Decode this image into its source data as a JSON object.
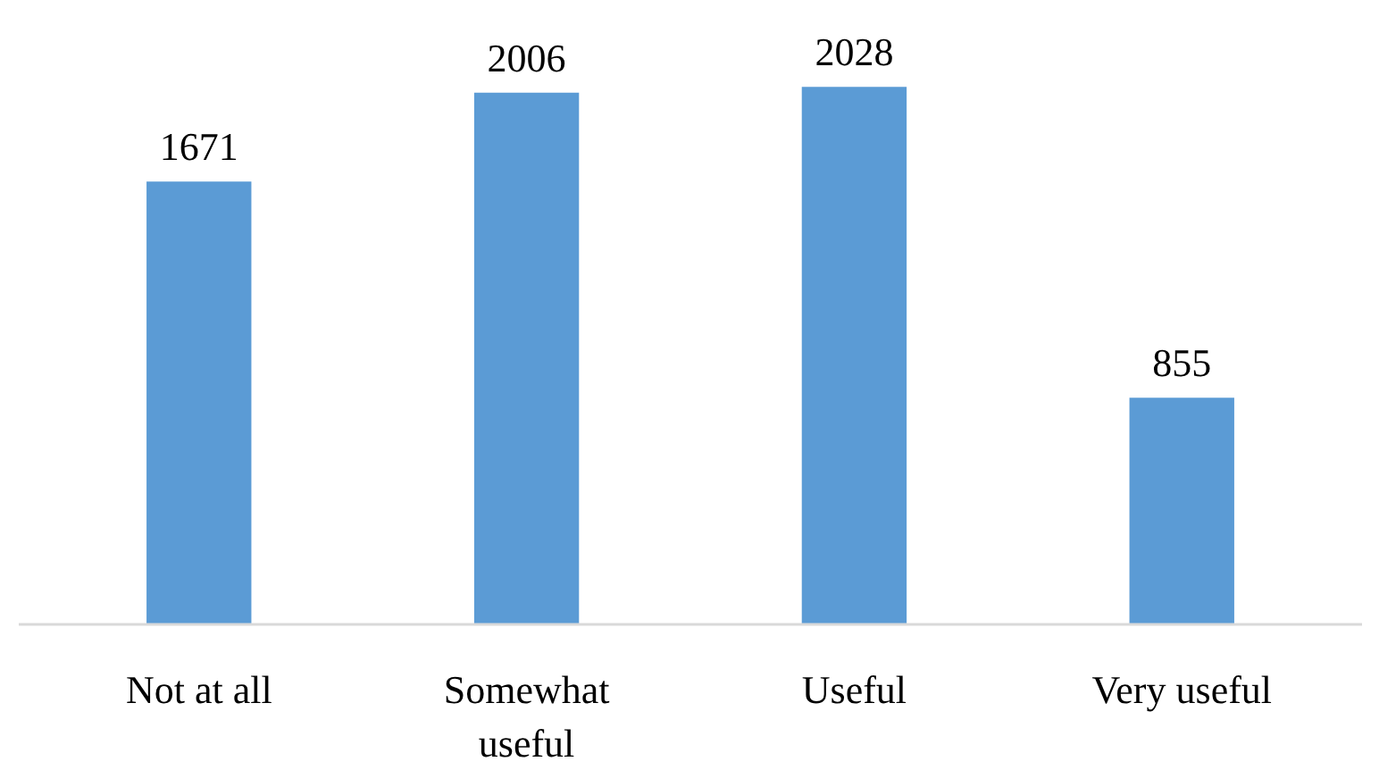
{
  "chart_data": {
    "type": "bar",
    "categories": [
      "Not at all",
      "Somewhat useful",
      "Useful",
      "Very useful"
    ],
    "values": [
      1671,
      2006,
      2028,
      855
    ],
    "color": "#5b9bd5",
    "data_labels": true,
    "grid": false
  }
}
